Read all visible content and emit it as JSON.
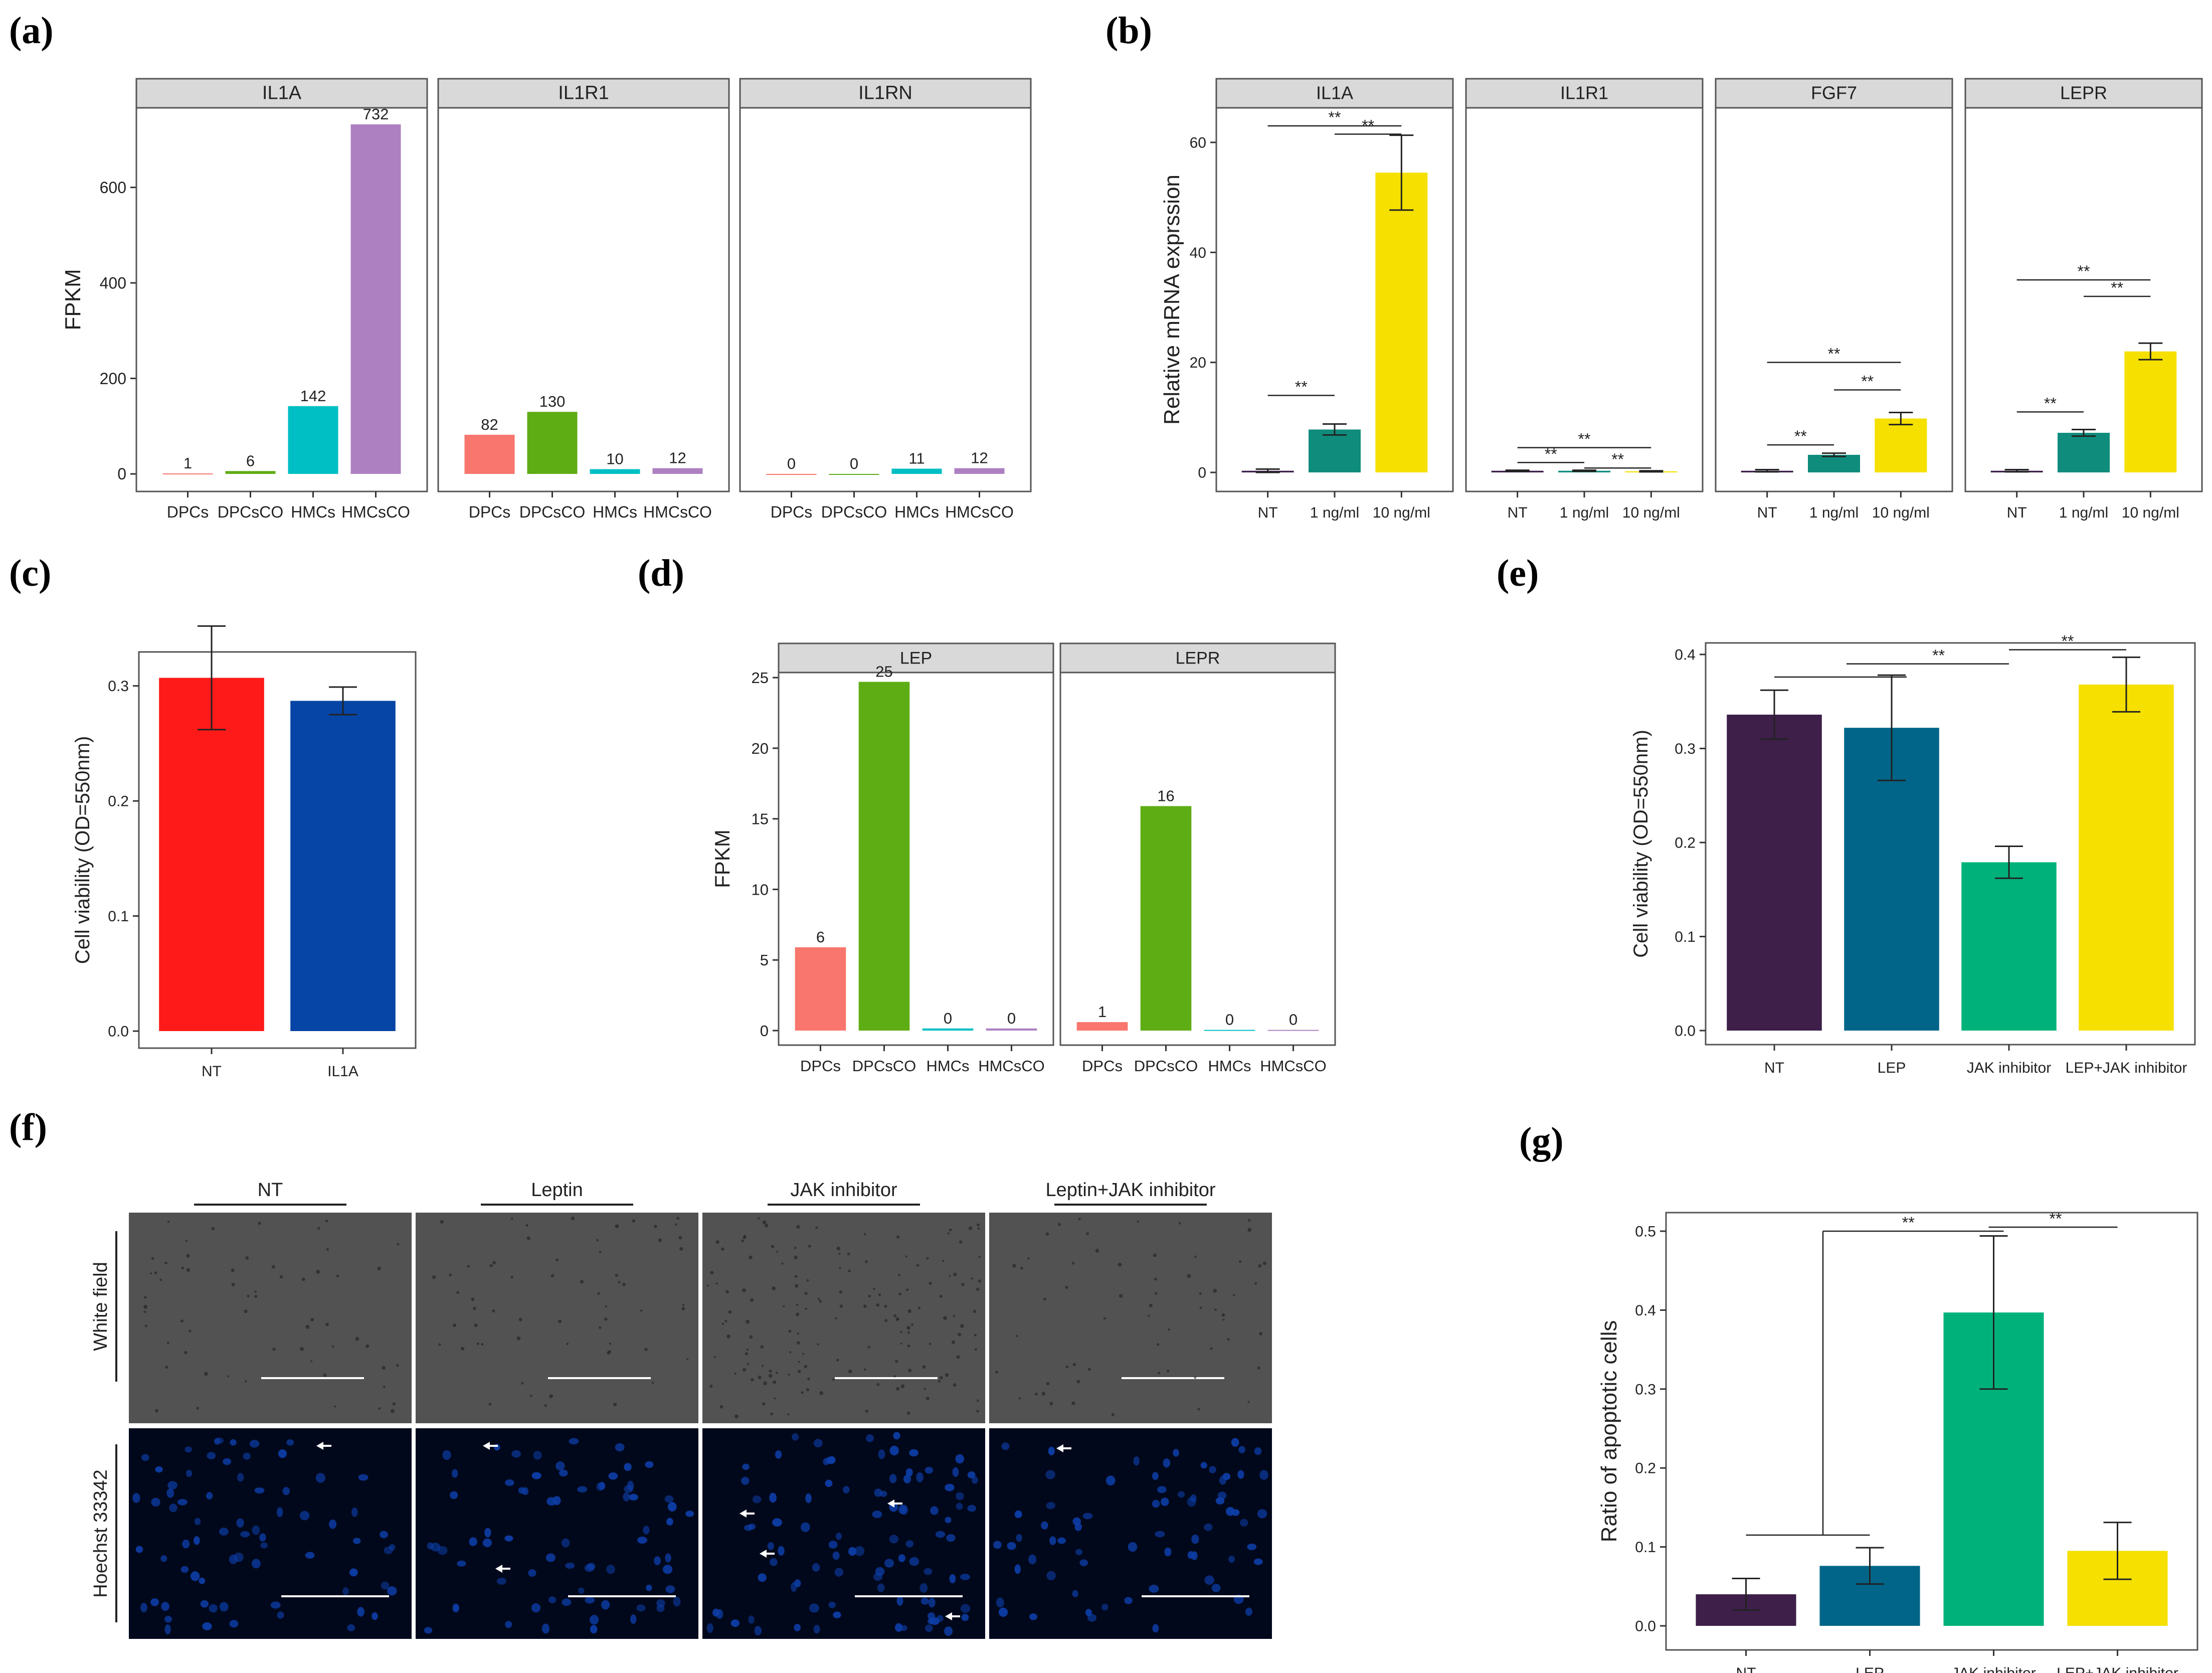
{
  "figure": {
    "panel_labels": [
      "(a)",
      "(b)",
      "(c)",
      "(d)",
      "(e)",
      "(f)",
      "(g)"
    ]
  },
  "colors": {
    "strip_fill": "#d9d9d9",
    "group_four": [
      "#f8766d",
      "#5fad15",
      "#00bfc4",
      "#ad80c2"
    ],
    "treatment_three": [
      "#3d1f4a",
      "#0f8c7c",
      "#f5e000"
    ],
    "viability_two": [
      "#ff1a1a",
      "#0645a5"
    ],
    "treatment_four": [
      "#3d1f4a",
      "#006588",
      "#00b27a",
      "#f5e000"
    ]
  },
  "chart_data": [
    {
      "id": "a",
      "type": "bar",
      "ylabel": "FPKM",
      "ylim": [
        0,
        732
      ],
      "yticks": [
        0,
        200,
        400,
        600
      ],
      "facets": [
        {
          "title": "IL1A",
          "categories": [
            "DPCs",
            "DPCsCO",
            "HMCs",
            "HMCsCO"
          ],
          "values": [
            1,
            6,
            142,
            732
          ],
          "labels": [
            "1",
            "6",
            "142",
            "732"
          ]
        },
        {
          "title": "IL1R1",
          "categories": [
            "DPCs",
            "DPCsCO",
            "HMCs",
            "HMCsCO"
          ],
          "values": [
            82,
            130,
            10,
            12
          ],
          "labels": [
            "82",
            "130",
            "10",
            "12"
          ]
        },
        {
          "title": "IL1RN",
          "categories": [
            "DPCs",
            "DPCsCO",
            "HMCs",
            "HMCsCO"
          ],
          "values": [
            0,
            0,
            11,
            12
          ],
          "labels": [
            "0",
            "0",
            "11",
            "12"
          ]
        }
      ]
    },
    {
      "id": "b",
      "type": "bar",
      "ylabel": "Relative mRNA exprssion",
      "ylim": [
        0,
        62
      ],
      "yticks": [
        0,
        20,
        40,
        60
      ],
      "facets": [
        {
          "title": "IL1A",
          "categories": [
            "NT",
            "1 ng/ml",
            "10 ng/ml"
          ],
          "values": [
            0.3,
            7.8,
            54.5
          ],
          "err": [
            0.3,
            1.0,
            6.8
          ],
          "sig": [
            {
              "from": 0,
              "to": 1,
              "y": 14,
              "text": "**"
            },
            {
              "from": 1,
              "to": 2,
              "y": 61.5,
              "text": "**"
            },
            {
              "from": 0,
              "to": 2,
              "y": 63,
              "text": "**"
            }
          ]
        },
        {
          "title": "IL1R1",
          "categories": [
            "NT",
            "1 ng/ml",
            "10 ng/ml"
          ],
          "values": [
            0.3,
            0.3,
            0.2
          ],
          "err": [
            0.1,
            0.1,
            0.1
          ],
          "sig": [
            {
              "from": 0,
              "to": 1,
              "y": 1.8,
              "text": "**"
            },
            {
              "from": 1,
              "to": 2,
              "y": 0.8,
              "text": "**"
            },
            {
              "from": 0,
              "to": 2,
              "y": 4.5,
              "text": "**"
            }
          ]
        },
        {
          "title": "FGF7",
          "categories": [
            "NT",
            "1 ng/ml",
            "10 ng/ml"
          ],
          "values": [
            0.3,
            3.2,
            9.8
          ],
          "err": [
            0.2,
            0.3,
            1.1
          ],
          "sig": [
            {
              "from": 0,
              "to": 1,
              "y": 5,
              "text": "**"
            },
            {
              "from": 1,
              "to": 2,
              "y": 15,
              "text": "**"
            },
            {
              "from": 0,
              "to": 2,
              "y": 20,
              "text": "**"
            }
          ]
        },
        {
          "title": "LEPR",
          "categories": [
            "NT",
            "1 ng/ml",
            "10 ng/ml"
          ],
          "values": [
            0.3,
            7.2,
            22
          ],
          "err": [
            0.2,
            0.6,
            1.5
          ],
          "sig": [
            {
              "from": 0,
              "to": 1,
              "y": 11,
              "text": "**"
            },
            {
              "from": 1,
              "to": 2,
              "y": 32,
              "text": "**"
            },
            {
              "from": 0,
              "to": 2,
              "y": 35,
              "text": "**"
            }
          ]
        }
      ]
    },
    {
      "id": "c",
      "type": "bar",
      "ylabel": "Cell viability (OD=550nm)",
      "ylim": [
        0,
        0.36
      ],
      "yticks": [
        0.0,
        0.1,
        0.2,
        0.3
      ],
      "ytick_labels": [
        "0.0",
        "0.1",
        "0.2",
        "0.3"
      ],
      "categories": [
        "NT",
        "IL1A"
      ],
      "values": [
        0.307,
        0.287
      ],
      "err": [
        0.045,
        0.012
      ]
    },
    {
      "id": "d",
      "type": "bar",
      "ylabel": "FPKM",
      "ylim": [
        0,
        26
      ],
      "yticks": [
        0,
        5,
        10,
        15,
        20,
        25
      ],
      "facets": [
        {
          "title": "LEP",
          "categories": [
            "DPCs",
            "DPCsCO",
            "HMCs",
            "HMCsCO"
          ],
          "values": [
            5.9,
            24.7,
            0.15,
            0.15
          ],
          "labels": [
            "6",
            "25",
            "0",
            "0"
          ]
        },
        {
          "title": "LEPR",
          "categories": [
            "DPCs",
            "DPCsCO",
            "HMCs",
            "HMCsCO"
          ],
          "values": [
            0.6,
            15.9,
            0.05,
            0.05
          ],
          "labels": [
            "1",
            "16",
            "0",
            "0"
          ]
        }
      ]
    },
    {
      "id": "e",
      "type": "bar",
      "ylabel": "Cell viability (OD=550nm)",
      "ylim": [
        0,
        0.4
      ],
      "yticks": [
        0.0,
        0.1,
        0.2,
        0.3,
        0.4
      ],
      "ytick_labels": [
        "0.0",
        "0.1",
        "0.2",
        "0.3",
        "0.4"
      ],
      "categories": [
        "NT",
        "LEP",
        "JAK inhibitor",
        "LEP+JAK inhibitor"
      ],
      "values": [
        0.336,
        0.322,
        0.179,
        0.368
      ],
      "err": [
        0.026,
        0.056,
        0.017,
        0.029
      ],
      "sig": [
        {
          "from": 0,
          "to": 2,
          "y": 0.39,
          "text": "**",
          "label_pos": 1.4
        },
        {
          "from": 2,
          "to": 3,
          "y": 0.405,
          "text": "**",
          "label_pos": 2.5
        }
      ]
    },
    {
      "id": "g",
      "type": "bar",
      "ylabel": "Ratio of apoptotic cells",
      "ylim": [
        0,
        0.5
      ],
      "yticks": [
        0.0,
        0.1,
        0.2,
        0.3,
        0.4,
        0.5
      ],
      "ytick_labels": [
        "0.0",
        "0.1",
        "0.2",
        "0.3",
        "0.4",
        "0.5"
      ],
      "categories": [
        "NT",
        "LEP",
        "JAK inhibitor",
        "LEP+JAK inhibitor"
      ],
      "values": [
        0.04,
        0.076,
        0.397,
        0.095
      ],
      "err": [
        0.02,
        0.023,
        0.097,
        0.036
      ]
    }
  ],
  "panel_f": {
    "columns": [
      "NT",
      "Leptin",
      "JAK inhibitor",
      "Leptin+JAK inhibitor"
    ],
    "rows": [
      "White field",
      "Hoechst 33342"
    ]
  }
}
